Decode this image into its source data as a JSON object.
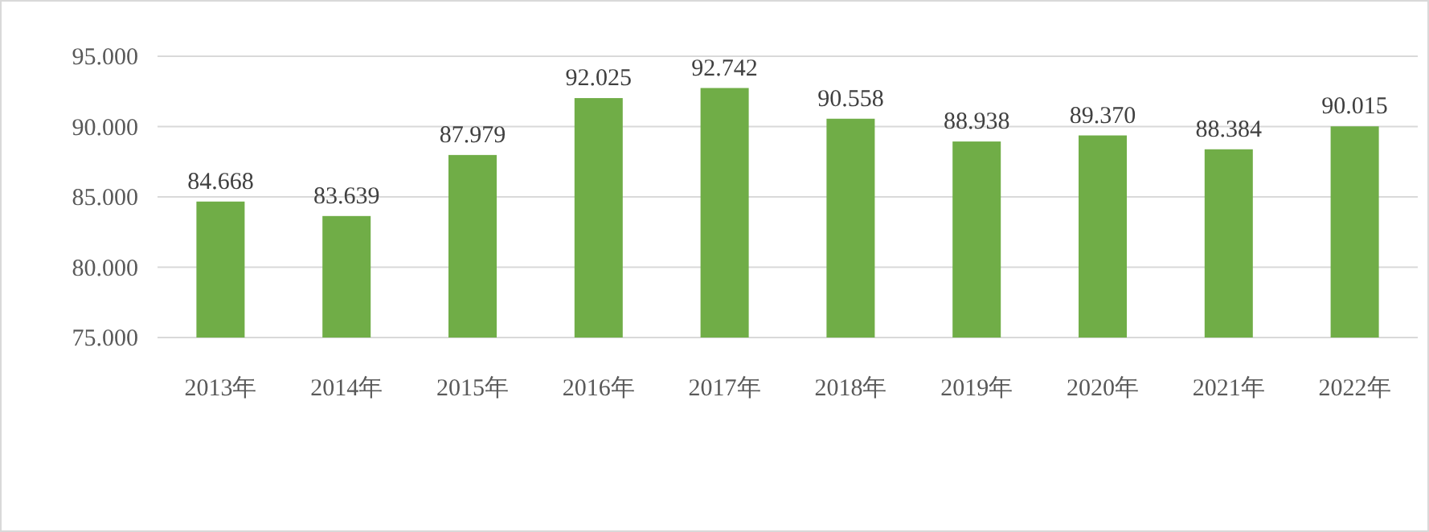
{
  "chart_data": {
    "type": "bar",
    "categories": [
      "2013年",
      "2014年",
      "2015年",
      "2016年",
      "2017年",
      "2018年",
      "2019年",
      "2020年",
      "2021年",
      "2022年"
    ],
    "values": [
      84.668,
      83.639,
      87.979,
      92.025,
      92.742,
      90.558,
      88.938,
      89.37,
      88.384,
      90.015
    ],
    "value_labels": [
      "84.668",
      "83.639",
      "87.979",
      "92.025",
      "92.742",
      "90.558",
      "88.938",
      "89.370",
      "88.384",
      "90.015"
    ],
    "color": "#70ad47",
    "ylim": [
      75,
      95
    ],
    "yticks": [
      {
        "value": 75,
        "label": "75.000"
      },
      {
        "value": 80,
        "label": "80.000"
      },
      {
        "value": 85,
        "label": "85.000"
      },
      {
        "value": 90,
        "label": "90.000"
      },
      {
        "value": 95,
        "label": "95.000"
      }
    ],
    "grid": "y"
  }
}
